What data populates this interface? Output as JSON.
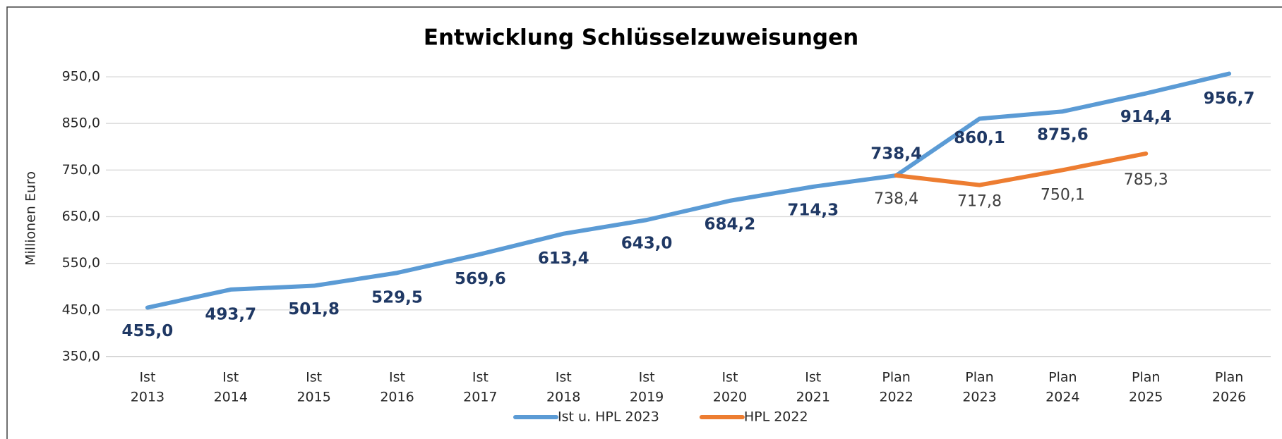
{
  "chart_data": {
    "type": "line",
    "title": "Entwicklung  Schlüsselzuweisungen",
    "y_label": "Millionen Euro",
    "categories": [
      [
        "Ist",
        "2013"
      ],
      [
        "Ist",
        "2014"
      ],
      [
        "Ist",
        "2015"
      ],
      [
        "Ist",
        "2016"
      ],
      [
        "Ist",
        "2017"
      ],
      [
        "Ist",
        "2018"
      ],
      [
        "Ist",
        "2019"
      ],
      [
        "Ist",
        "2020"
      ],
      [
        "Ist",
        "2021"
      ],
      [
        "Plan",
        "2022"
      ],
      [
        "Plan",
        "2023"
      ],
      [
        "Plan",
        "2024"
      ],
      [
        "Plan",
        "2025"
      ],
      [
        "Plan",
        "2026"
      ]
    ],
    "series": [
      {
        "name": "Ist u. HPL 2023",
        "color": "#5b9bd5",
        "values": [
          455.0,
          493.7,
          501.8,
          529.5,
          569.6,
          613.4,
          643.0,
          684.2,
          714.3,
          738.4,
          860.1,
          875.6,
          914.4,
          956.7
        ],
        "value_labels": [
          "455,0",
          "493,7",
          "501,8",
          "529,5",
          "569,6",
          "613,4",
          "643,0",
          "684,2",
          "714,3",
          "738,4",
          "860,1",
          "875,6",
          "914,4",
          "956,7"
        ]
      },
      {
        "name": "HPL 2022",
        "color": "#ed7d31",
        "values": [
          null,
          null,
          null,
          null,
          null,
          null,
          null,
          null,
          null,
          738.4,
          717.8,
          750.1,
          785.3,
          null
        ],
        "value_labels": [
          null,
          null,
          null,
          null,
          null,
          null,
          null,
          null,
          null,
          "738,4",
          "717,8",
          "750,1",
          "785,3",
          null
        ]
      }
    ],
    "ylim": [
      350,
      950
    ],
    "yticks": [
      {
        "value": 350,
        "label": "350,0"
      },
      {
        "value": 450,
        "label": "450,0"
      },
      {
        "value": 550,
        "label": "550,0"
      },
      {
        "value": 650,
        "label": "650,0"
      },
      {
        "value": 750,
        "label": "750,0"
      },
      {
        "value": 850,
        "label": "850,0"
      },
      {
        "value": 950,
        "label": "950,0"
      }
    ],
    "grid": true,
    "legend": "bottom"
  }
}
